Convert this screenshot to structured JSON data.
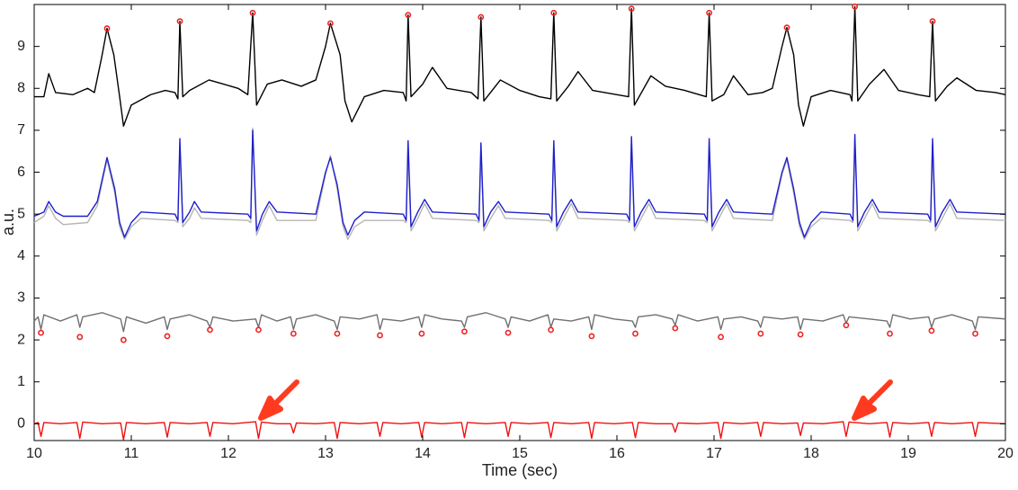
{
  "chart_data": {
    "type": "line",
    "xlabel": "Time (sec)",
    "ylabel": "a.u.",
    "xlim": [
      10,
      20
    ],
    "xticks": [
      10,
      11,
      12,
      13,
      14,
      15,
      16,
      17,
      18,
      19,
      20
    ],
    "ylim": [
      -0.4,
      10
    ],
    "yticks": [
      0,
      1,
      2,
      3,
      4,
      5,
      6,
      7,
      8,
      9
    ],
    "series": [
      {
        "color": "#000000",
        "mode": "line",
        "x": [
          10.0,
          10.1,
          10.15,
          10.22,
          10.4,
          10.55,
          10.62,
          10.7,
          10.75,
          10.82,
          10.88,
          10.92,
          11.0,
          11.2,
          11.35,
          11.45,
          11.48,
          11.5,
          11.53,
          11.6,
          11.8,
          11.95,
          12.1,
          12.2,
          12.25,
          12.29,
          12.4,
          12.55,
          12.75,
          12.9,
          13.0,
          13.05,
          13.15,
          13.2,
          13.27,
          13.4,
          13.6,
          13.8,
          13.83,
          13.85,
          13.88,
          14.0,
          14.1,
          14.25,
          14.5,
          14.57,
          14.6,
          14.63,
          14.8,
          15.0,
          15.2,
          15.32,
          15.35,
          15.38,
          15.5,
          15.6,
          15.75,
          16.0,
          16.12,
          16.15,
          16.18,
          16.35,
          16.5,
          16.7,
          16.92,
          16.95,
          16.98,
          17.1,
          17.2,
          17.35,
          17.5,
          17.6,
          17.7,
          17.75,
          17.82,
          17.87,
          17.92,
          18.0,
          18.2,
          18.4,
          18.42,
          18.45,
          18.48,
          18.6,
          18.75,
          18.9,
          19.1,
          19.22,
          19.25,
          19.28,
          19.4,
          19.5,
          19.7,
          19.9,
          20.0
        ],
        "values": [
          7.8,
          7.8,
          8.35,
          7.9,
          7.85,
          8.0,
          7.9,
          8.8,
          9.43,
          8.8,
          7.8,
          7.1,
          7.6,
          7.85,
          7.95,
          7.9,
          7.75,
          9.6,
          7.8,
          7.95,
          8.2,
          8.1,
          8.0,
          7.85,
          9.8,
          7.6,
          8.1,
          8.2,
          8.05,
          8.2,
          9.0,
          9.55,
          8.8,
          7.7,
          7.2,
          7.8,
          7.95,
          7.9,
          7.7,
          9.75,
          7.8,
          8.1,
          8.5,
          8.0,
          7.9,
          7.75,
          9.7,
          7.7,
          8.2,
          7.95,
          7.8,
          7.75,
          9.8,
          7.7,
          8.05,
          8.4,
          7.95,
          7.85,
          7.8,
          9.9,
          7.6,
          8.3,
          8.05,
          7.95,
          7.8,
          9.8,
          7.7,
          7.85,
          8.3,
          7.85,
          7.9,
          8.0,
          9.0,
          9.45,
          8.8,
          7.6,
          7.1,
          7.8,
          7.95,
          7.85,
          7.7,
          9.95,
          7.7,
          8.1,
          8.45,
          7.95,
          7.85,
          7.8,
          9.6,
          7.7,
          8.05,
          8.25,
          7.95,
          7.9,
          7.85
        ]
      },
      {
        "color": "#ee2222",
        "mode": "markers",
        "x": [
          10.75,
          11.5,
          12.25,
          13.05,
          13.85,
          14.6,
          15.35,
          16.15,
          16.95,
          17.75,
          18.45,
          19.25
        ],
        "values": [
          9.43,
          9.6,
          9.8,
          9.55,
          9.75,
          9.7,
          9.8,
          9.9,
          9.8,
          9.45,
          9.95,
          9.6
        ]
      },
      {
        "color": "#b5b5b5",
        "mode": "line",
        "x": [
          10.0,
          10.1,
          10.15,
          10.22,
          10.3,
          10.55,
          10.65,
          10.75,
          10.83,
          10.88,
          10.93,
          11.0,
          11.1,
          11.45,
          11.48,
          11.5,
          11.53,
          11.6,
          11.65,
          11.72,
          12.2,
          12.23,
          12.25,
          12.29,
          12.35,
          12.42,
          12.5,
          12.9,
          13.0,
          13.05,
          13.12,
          13.18,
          13.23,
          13.3,
          13.4,
          13.8,
          13.83,
          13.85,
          13.88,
          13.95,
          14.02,
          14.1,
          14.55,
          14.58,
          14.6,
          14.63,
          14.7,
          14.78,
          14.85,
          15.3,
          15.33,
          15.35,
          15.38,
          15.45,
          15.53,
          15.6,
          16.1,
          16.13,
          16.15,
          16.18,
          16.25,
          16.33,
          16.4,
          16.9,
          16.93,
          16.95,
          16.98,
          17.05,
          17.13,
          17.2,
          17.6,
          17.7,
          17.75,
          17.82,
          17.88,
          17.93,
          18.0,
          18.1,
          18.4,
          18.43,
          18.45,
          18.48,
          18.55,
          18.63,
          18.7,
          19.2,
          19.23,
          19.25,
          19.28,
          19.35,
          19.43,
          19.5,
          20.0
        ],
        "values": [
          4.8,
          4.95,
          5.2,
          4.9,
          4.75,
          4.8,
          5.2,
          6.3,
          5.5,
          4.7,
          4.4,
          4.7,
          4.9,
          4.85,
          4.8,
          6.6,
          4.7,
          4.9,
          5.15,
          4.9,
          4.85,
          4.8,
          7.05,
          4.5,
          4.85,
          5.2,
          4.85,
          4.85,
          5.95,
          6.4,
          5.6,
          4.7,
          4.4,
          4.7,
          4.85,
          4.85,
          4.8,
          6.6,
          4.6,
          4.9,
          5.25,
          4.9,
          4.85,
          4.8,
          6.55,
          4.6,
          4.9,
          5.2,
          4.9,
          4.85,
          4.8,
          6.6,
          4.6,
          4.9,
          5.25,
          4.9,
          4.85,
          4.8,
          6.7,
          4.6,
          4.9,
          5.25,
          4.9,
          4.85,
          4.8,
          6.65,
          4.6,
          4.9,
          5.25,
          4.9,
          4.85,
          5.95,
          6.3,
          5.5,
          4.7,
          4.4,
          4.7,
          4.9,
          4.85,
          4.8,
          6.75,
          4.6,
          4.9,
          5.25,
          4.9,
          4.85,
          4.8,
          6.65,
          4.6,
          4.9,
          5.25,
          4.9,
          4.85
        ]
      },
      {
        "color": "#1f1fcc",
        "mode": "line",
        "x": [
          10.0,
          10.1,
          10.15,
          10.22,
          10.3,
          10.55,
          10.65,
          10.75,
          10.83,
          10.88,
          10.93,
          11.0,
          11.1,
          11.45,
          11.48,
          11.5,
          11.53,
          11.6,
          11.65,
          11.72,
          12.2,
          12.23,
          12.25,
          12.29,
          12.35,
          12.42,
          12.5,
          12.9,
          13.0,
          13.05,
          13.12,
          13.18,
          13.23,
          13.3,
          13.4,
          13.8,
          13.83,
          13.85,
          13.88,
          13.95,
          14.02,
          14.1,
          14.55,
          14.58,
          14.6,
          14.63,
          14.7,
          14.78,
          14.85,
          15.3,
          15.33,
          15.35,
          15.38,
          15.45,
          15.53,
          15.6,
          16.1,
          16.13,
          16.15,
          16.18,
          16.25,
          16.33,
          16.4,
          16.9,
          16.93,
          16.95,
          16.98,
          17.05,
          17.13,
          17.2,
          17.6,
          17.7,
          17.75,
          17.82,
          17.88,
          17.93,
          18.0,
          18.1,
          18.4,
          18.43,
          18.45,
          18.48,
          18.55,
          18.63,
          18.7,
          19.2,
          19.23,
          19.25,
          19.28,
          19.35,
          19.43,
          19.5,
          20.0
        ],
        "values": [
          4.95,
          5.05,
          5.3,
          5.05,
          4.95,
          4.95,
          5.3,
          6.35,
          5.6,
          4.8,
          4.45,
          4.8,
          5.05,
          5.0,
          4.85,
          6.8,
          4.8,
          5.05,
          5.3,
          5.05,
          5.0,
          4.9,
          7.0,
          4.6,
          5.0,
          5.3,
          5.05,
          5.0,
          6.0,
          6.35,
          5.7,
          4.8,
          4.5,
          4.85,
          5.05,
          5.0,
          4.85,
          6.75,
          4.7,
          5.05,
          5.35,
          5.05,
          5.0,
          4.85,
          6.7,
          4.7,
          5.05,
          5.3,
          5.05,
          5.0,
          4.85,
          6.75,
          4.7,
          5.05,
          5.35,
          5.05,
          5.0,
          4.85,
          6.85,
          4.7,
          5.05,
          5.35,
          5.05,
          5.0,
          4.85,
          6.8,
          4.7,
          5.05,
          5.35,
          5.05,
          5.0,
          6.0,
          6.35,
          5.6,
          4.8,
          4.45,
          4.8,
          5.05,
          5.0,
          4.85,
          6.9,
          4.7,
          5.05,
          5.35,
          5.05,
          5.0,
          4.85,
          6.8,
          4.7,
          5.05,
          5.35,
          5.05,
          5.0
        ]
      },
      {
        "color": "#707070",
        "mode": "line",
        "x": [
          10.0,
          10.04,
          10.07,
          10.1,
          10.27,
          10.44,
          10.47,
          10.5,
          10.7,
          10.89,
          10.92,
          10.95,
          11.15,
          11.34,
          11.37,
          11.4,
          11.6,
          11.78,
          11.81,
          11.84,
          12.05,
          12.28,
          12.31,
          12.34,
          12.5,
          12.64,
          12.67,
          12.7,
          12.9,
          13.09,
          13.12,
          13.15,
          13.35,
          13.53,
          13.56,
          13.59,
          13.78,
          13.96,
          13.99,
          14.02,
          14.2,
          14.4,
          14.43,
          14.46,
          14.65,
          14.85,
          14.88,
          14.91,
          15.1,
          15.29,
          15.32,
          15.35,
          15.53,
          15.71,
          15.74,
          15.77,
          15.97,
          16.16,
          16.19,
          16.22,
          16.4,
          16.57,
          16.6,
          16.63,
          16.83,
          17.04,
          17.07,
          17.1,
          17.28,
          17.45,
          17.48,
          17.51,
          17.7,
          17.86,
          17.89,
          17.92,
          18.12,
          18.33,
          18.36,
          18.39,
          18.6,
          18.78,
          18.81,
          18.84,
          19.02,
          19.21,
          19.24,
          19.27,
          19.45,
          19.66,
          19.69,
          19.72,
          20.0
        ],
        "values": [
          2.45,
          2.55,
          2.25,
          2.6,
          2.45,
          2.6,
          2.3,
          2.55,
          2.65,
          2.5,
          2.2,
          2.55,
          2.4,
          2.55,
          2.25,
          2.5,
          2.6,
          2.45,
          2.3,
          2.55,
          2.45,
          2.5,
          2.3,
          2.6,
          2.45,
          2.55,
          2.25,
          2.5,
          2.6,
          2.45,
          2.25,
          2.55,
          2.5,
          2.6,
          2.25,
          2.5,
          2.45,
          2.55,
          2.3,
          2.6,
          2.5,
          2.45,
          2.3,
          2.55,
          2.65,
          2.5,
          2.3,
          2.55,
          2.45,
          2.6,
          2.3,
          2.5,
          2.45,
          2.55,
          2.25,
          2.6,
          2.5,
          2.45,
          2.3,
          2.55,
          2.6,
          2.5,
          2.35,
          2.6,
          2.45,
          2.55,
          2.25,
          2.5,
          2.55,
          2.45,
          2.3,
          2.55,
          2.5,
          2.55,
          2.25,
          2.5,
          2.45,
          2.6,
          2.4,
          2.55,
          2.5,
          2.45,
          2.3,
          2.6,
          2.5,
          2.55,
          2.3,
          2.5,
          2.6,
          2.45,
          2.25,
          2.55,
          2.5
        ]
      },
      {
        "color": "#ee2222",
        "mode": "markers",
        "x": [
          10.07,
          10.47,
          10.92,
          11.37,
          11.81,
          12.31,
          12.67,
          13.12,
          13.56,
          13.99,
          14.43,
          14.88,
          15.32,
          15.74,
          16.19,
          16.6,
          17.07,
          17.48,
          17.89,
          18.36,
          18.81,
          19.24,
          19.69
        ],
        "values": [
          2.17,
          2.07,
          2.0,
          2.09,
          2.24,
          2.24,
          2.15,
          2.15,
          2.11,
          2.15,
          2.2,
          2.17,
          2.24,
          2.09,
          2.15,
          2.28,
          2.07,
          2.15,
          2.13,
          2.35,
          2.15,
          2.22,
          2.15
        ]
      },
      {
        "color": "#ee1111",
        "mode": "line",
        "x": [
          10.0,
          10.04,
          10.07,
          10.1,
          10.27,
          10.44,
          10.47,
          10.5,
          10.7,
          10.89,
          10.92,
          10.95,
          11.15,
          11.34,
          11.37,
          11.4,
          11.6,
          11.78,
          11.81,
          11.84,
          12.05,
          12.28,
          12.31,
          12.34,
          12.5,
          12.64,
          12.67,
          12.7,
          12.9,
          13.09,
          13.12,
          13.15,
          13.35,
          13.53,
          13.56,
          13.59,
          13.78,
          13.96,
          13.99,
          14.02,
          14.2,
          14.4,
          14.43,
          14.46,
          14.65,
          14.85,
          14.88,
          14.91,
          15.1,
          15.29,
          15.32,
          15.35,
          15.53,
          15.71,
          15.74,
          15.77,
          15.97,
          16.16,
          16.19,
          16.22,
          16.4,
          16.57,
          16.6,
          16.63,
          16.83,
          17.04,
          17.07,
          17.1,
          17.28,
          17.45,
          17.48,
          17.51,
          17.7,
          17.86,
          17.89,
          17.92,
          18.12,
          18.33,
          18.36,
          18.39,
          18.6,
          18.78,
          18.81,
          18.84,
          19.02,
          19.21,
          19.24,
          19.27,
          19.45,
          19.66,
          19.69,
          19.72,
          20.0
        ],
        "values": [
          0.0,
          0.03,
          -0.3,
          0.03,
          0.0,
          0.03,
          -0.35,
          0.04,
          0.0,
          0.02,
          -0.38,
          0.03,
          0.0,
          0.03,
          -0.32,
          0.03,
          0.0,
          0.03,
          -0.3,
          0.03,
          0.0,
          0.05,
          -0.35,
          0.04,
          0.0,
          0.0,
          -0.22,
          0.02,
          0.0,
          0.03,
          -0.35,
          0.03,
          0.0,
          0.03,
          -0.3,
          0.03,
          0.0,
          0.03,
          -0.32,
          0.03,
          0.0,
          0.03,
          -0.33,
          0.03,
          0.0,
          0.03,
          -0.3,
          0.03,
          0.0,
          0.03,
          -0.33,
          0.03,
          0.0,
          0.03,
          -0.35,
          0.03,
          0.0,
          0.03,
          -0.33,
          0.03,
          0.0,
          0.0,
          -0.2,
          0.02,
          0.0,
          0.03,
          -0.35,
          0.03,
          0.0,
          0.03,
          -0.3,
          0.03,
          0.0,
          0.02,
          -0.28,
          0.02,
          0.0,
          0.05,
          -0.3,
          0.04,
          0.0,
          0.03,
          -0.32,
          0.03,
          0.0,
          0.03,
          -0.3,
          0.03,
          0.0,
          0.03,
          -0.3,
          0.03,
          0.0
        ]
      }
    ]
  }
}
